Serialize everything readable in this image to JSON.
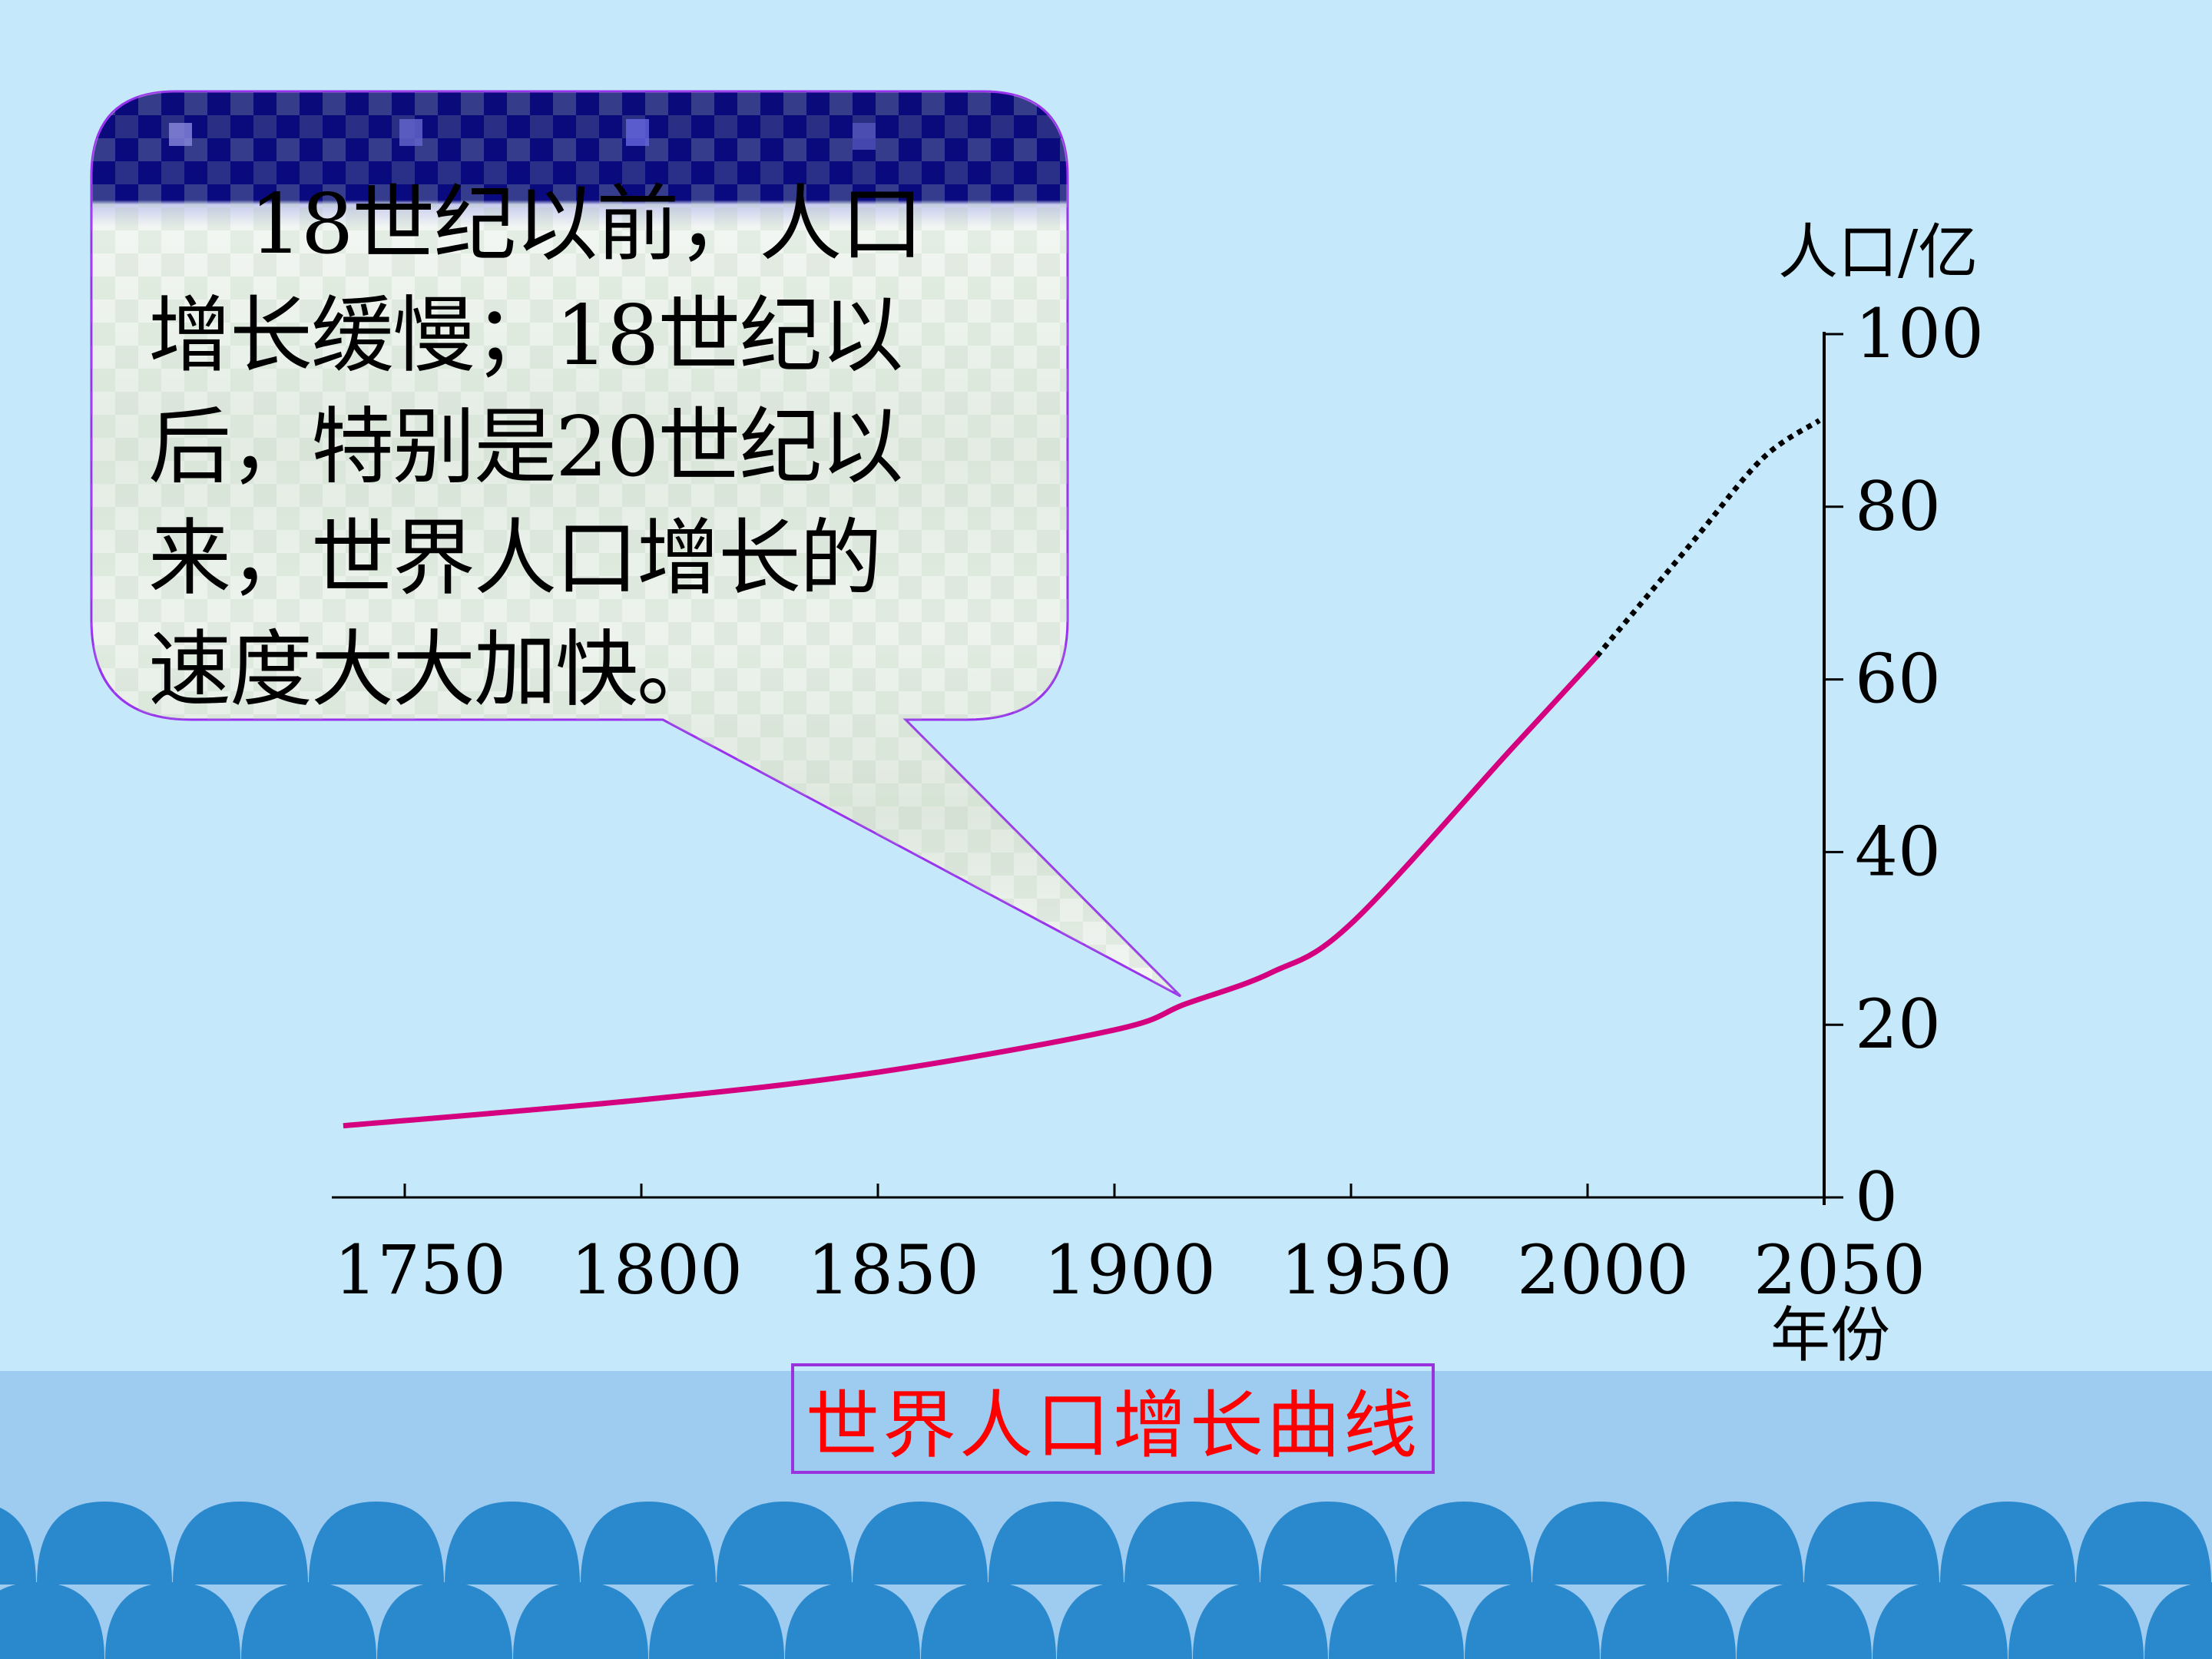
{
  "bubble": {
    "lines": [
      "18世纪以前，人口",
      "增长缓慢；18世纪以",
      "后，特别是20世纪以",
      "来，世界人口增长的",
      "速度大大加快。"
    ]
  },
  "caption": "世界人口增长曲线",
  "colors": {
    "background": "#c5e8fb",
    "band": "#9ecbf0",
    "waves": "#2a88cc",
    "curve": "#d4007f",
    "bubble_border": "#9933ee",
    "caption_text": "#ff0000"
  },
  "chart_data": {
    "type": "line",
    "title": "世界人口增长曲线",
    "xlabel": "年份",
    "ylabel": "人口/亿",
    "xlim": [
      1750,
      2050
    ],
    "ylim": [
      0,
      100
    ],
    "x_ticks": [
      1750,
      1800,
      1850,
      1900,
      1950,
      2000,
      2050
    ],
    "y_ticks": [
      0,
      20,
      40,
      60,
      80,
      100
    ],
    "grid": false,
    "series": [
      {
        "style": "solid",
        "x": [
          1737,
          1800,
          1850,
          1900,
          1915,
          1933,
          1950,
          1984,
          2002
        ],
        "y": [
          8.3,
          11.3,
          14.5,
          19.4,
          22.4,
          26,
          31.7,
          52,
          62.7
        ]
      },
      {
        "style": "dotted",
        "x": [
          2002,
          2022,
          2037,
          2049
        ],
        "y": [
          62.7,
          75.8,
          85.6,
          90
        ]
      }
    ]
  }
}
